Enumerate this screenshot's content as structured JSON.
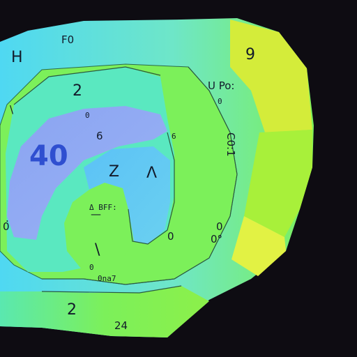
{
  "colors": {
    "background": "#0e0c12",
    "cyan": "#4fd8f2",
    "light_cyan": "#6ee6f0",
    "teal_green": "#57e6a8",
    "green": "#7cf05a",
    "lime": "#a8f03a",
    "yellow": "#d4ec3a",
    "yellow_bright": "#e2f244",
    "periwinkle": "#8aa4f2",
    "sky": "#5cc2f6",
    "outline": "#2a6a4a"
  },
  "labels": {
    "top_center": "F0",
    "top_left": "H",
    "left_2": "2",
    "left_bracket": "\\",
    "upper_right_9": "9",
    "upper_right_text": "U Po:",
    "upper_right_zero": "0",
    "vertical_text": "C0:1",
    "big_40": "40",
    "n_six": "6",
    "small_six": "6",
    "small_zero": "0",
    "z_letter": "Z",
    "lambda": "Λ",
    "center_small": "Δ BFF:",
    "center_dash": "—",
    "left_zero": "0",
    "slash": "\\",
    "side_zero": "0",
    "mid_right_zero": "0",
    "right_circle": "0°",
    "lower_small": "0na7",
    "bottom_2": "2",
    "bottom_24": "24",
    "lower_left_0": "0",
    "dot_marks": "."
  }
}
